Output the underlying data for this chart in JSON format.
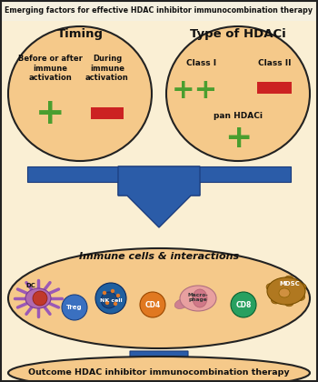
{
  "title": "Emerging factors for effective HDAC inhibitor immunocombination therapy",
  "bg_color": "#faefd4",
  "border_color": "#222222",
  "ellipse_fill": "#f5c98a",
  "ellipse_edge": "#222222",
  "arrow_color": "#2b5ca8",
  "arrow_edge": "#1a3a7a",
  "timing_title": "Timing",
  "type_title": "Type of HDACi",
  "timing_sub1": "Before or after\nimmune\nactivation",
  "timing_sub2": "During\nimmune\nactivation",
  "type_sub1": "Class I",
  "type_sub2": "Class II",
  "type_sub3": "pan HDACi",
  "immune_title": "Immune cells & interactions",
  "outcome_text": "Outcome HDAC inhibitor immunocombination therapy",
  "plus_color": "#4a9e2f",
  "minus_color": "#cc2222",
  "cell_colors": {
    "DC_body": "#b06ab0",
    "DC_nucleus": "#c0392b",
    "DC_spike": "#9b59b6",
    "Treg": "#3a70c0",
    "NK_outer": "#2060a0",
    "NK_inner": "#1a4a80",
    "CD4": "#e07820",
    "Macro_body": "#e8a0a0",
    "Macro_tail": "#d08090",
    "CD8": "#28a060",
    "MDSC_body": "#b07820",
    "MDSC_nucleus": "#d09040"
  }
}
